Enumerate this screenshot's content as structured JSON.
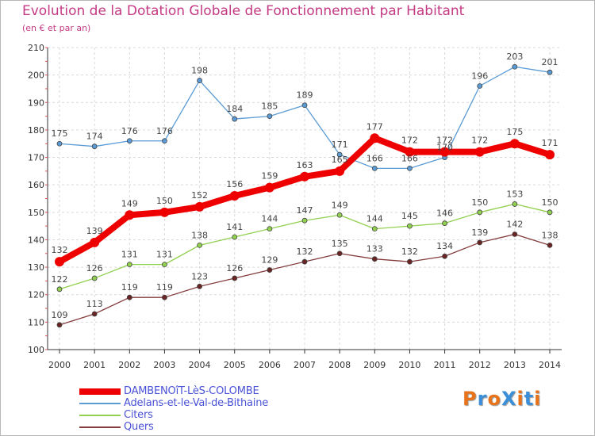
{
  "chart_data": {
    "type": "line",
    "title": "Evolution de la Dotation Globale de Fonctionnement par Habitant",
    "subtitle": "(en € et par an)",
    "x": [
      "2000",
      "2001",
      "2002",
      "2003",
      "2004",
      "2005",
      "2006",
      "2007",
      "2008",
      "2009",
      "2010",
      "2011",
      "2012",
      "2013",
      "2014"
    ],
    "ylim": [
      100,
      210
    ],
    "yticks": [
      100,
      110,
      120,
      130,
      140,
      150,
      160,
      170,
      180,
      190,
      200,
      210
    ],
    "grid": true,
    "legend_position": "bottom-left",
    "series": [
      {
        "name": "DAMBENOîT-LèS-COLOMBE",
        "color": "#ee0000",
        "values": [
          132,
          139,
          149,
          150,
          152,
          156,
          159,
          163,
          165,
          177,
          172,
          172,
          172,
          175,
          171
        ]
      },
      {
        "name": "Adelans-et-le-Val-de-Bithaine",
        "color": "#5b9bd5",
        "values": [
          175,
          174,
          176,
          176,
          198,
          184,
          185,
          189,
          171,
          166,
          166,
          170,
          196,
          203,
          201
        ]
      },
      {
        "name": "Citers",
        "color": "#92d050",
        "values": [
          122,
          126,
          131,
          131,
          138,
          141,
          144,
          147,
          149,
          144,
          145,
          146,
          150,
          153,
          150
        ]
      },
      {
        "name": "Quers",
        "color": "#843c3c",
        "values": [
          109,
          113,
          119,
          119,
          123,
          126,
          129,
          132,
          135,
          133,
          132,
          134,
          139,
          142,
          138
        ]
      }
    ]
  },
  "logo": {
    "text": "ProXiti",
    "colors": [
      "#e8731a",
      "#3a8fd8",
      "#e8731a",
      "#3a8fd8",
      "#e8731a",
      "#3a8fd8",
      "#e8731a"
    ]
  }
}
